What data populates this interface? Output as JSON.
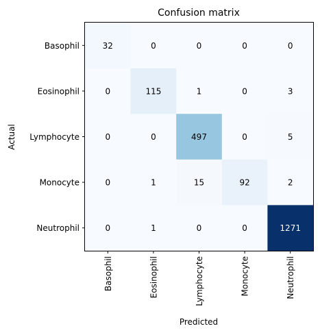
{
  "chart_data": {
    "type": "heatmap",
    "title": "Confusion matrix",
    "xlabel": "Predicted",
    "ylabel": "Actual",
    "row_labels": [
      "Basophil",
      "Eosinophil",
      "Lymphocyte",
      "Monocyte",
      "Neutrophil"
    ],
    "col_labels": [
      "Basophil",
      "Eosinophil",
      "Lymphocyte",
      "Monocyte",
      "Neutrophil"
    ],
    "values": [
      [
        32,
        0,
        0,
        0,
        0
      ],
      [
        0,
        115,
        1,
        0,
        3
      ],
      [
        0,
        0,
        497,
        0,
        5
      ],
      [
        0,
        1,
        15,
        92,
        2
      ],
      [
        0,
        1,
        0,
        0,
        1271
      ]
    ],
    "colormap": "Blues",
    "color_min": "#f7fbff",
    "color_max": "#08306b",
    "text_color_light": "#ffffff",
    "text_color_dark": "#000000"
  }
}
